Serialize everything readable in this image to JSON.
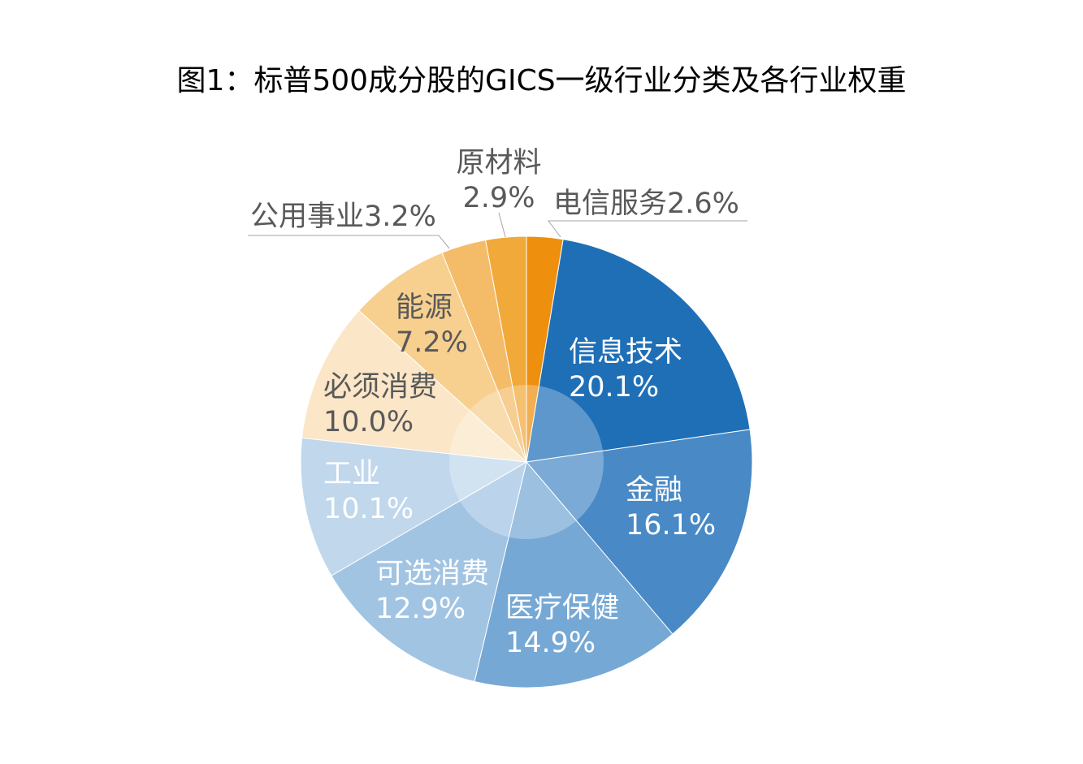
{
  "chart_data": {
    "type": "pie",
    "title": "图1：标普500成分股的GICS一级行业分类及各行业权重",
    "start_angle_deg": 0,
    "direction": "clockwise",
    "slices": [
      {
        "name": "电信服务",
        "value": 2.6,
        "label": "2.6%",
        "color": "#EE8F0E"
      },
      {
        "name": "信息技术",
        "value": 20.1,
        "label": "20.1%",
        "color": "#1F6FB7"
      },
      {
        "name": "金融",
        "value": 16.1,
        "label": "16.1%",
        "color": "#4889C6"
      },
      {
        "name": "医疗保健",
        "value": 14.9,
        "label": "14.9%",
        "color": "#76A8D5"
      },
      {
        "name": "可选消费",
        "value": 12.9,
        "label": "12.9%",
        "color": "#A2C4E3"
      },
      {
        "name": "工业",
        "value": 10.1,
        "label": "10.1%",
        "color": "#C0D7EC"
      },
      {
        "name": "必须消费",
        "value": 10.0,
        "label": "10.0%",
        "color": "#FBE6C7"
      },
      {
        "name": "能源",
        "value": 7.2,
        "label": "7.2%",
        "color": "#F7CF8F"
      },
      {
        "name": "公用事业",
        "value": 3.2,
        "label": "3.2%",
        "color": "#F4BC68"
      },
      {
        "name": "原材料",
        "value": 2.9,
        "label": "2.9%",
        "color": "#F1A93A"
      }
    ]
  }
}
